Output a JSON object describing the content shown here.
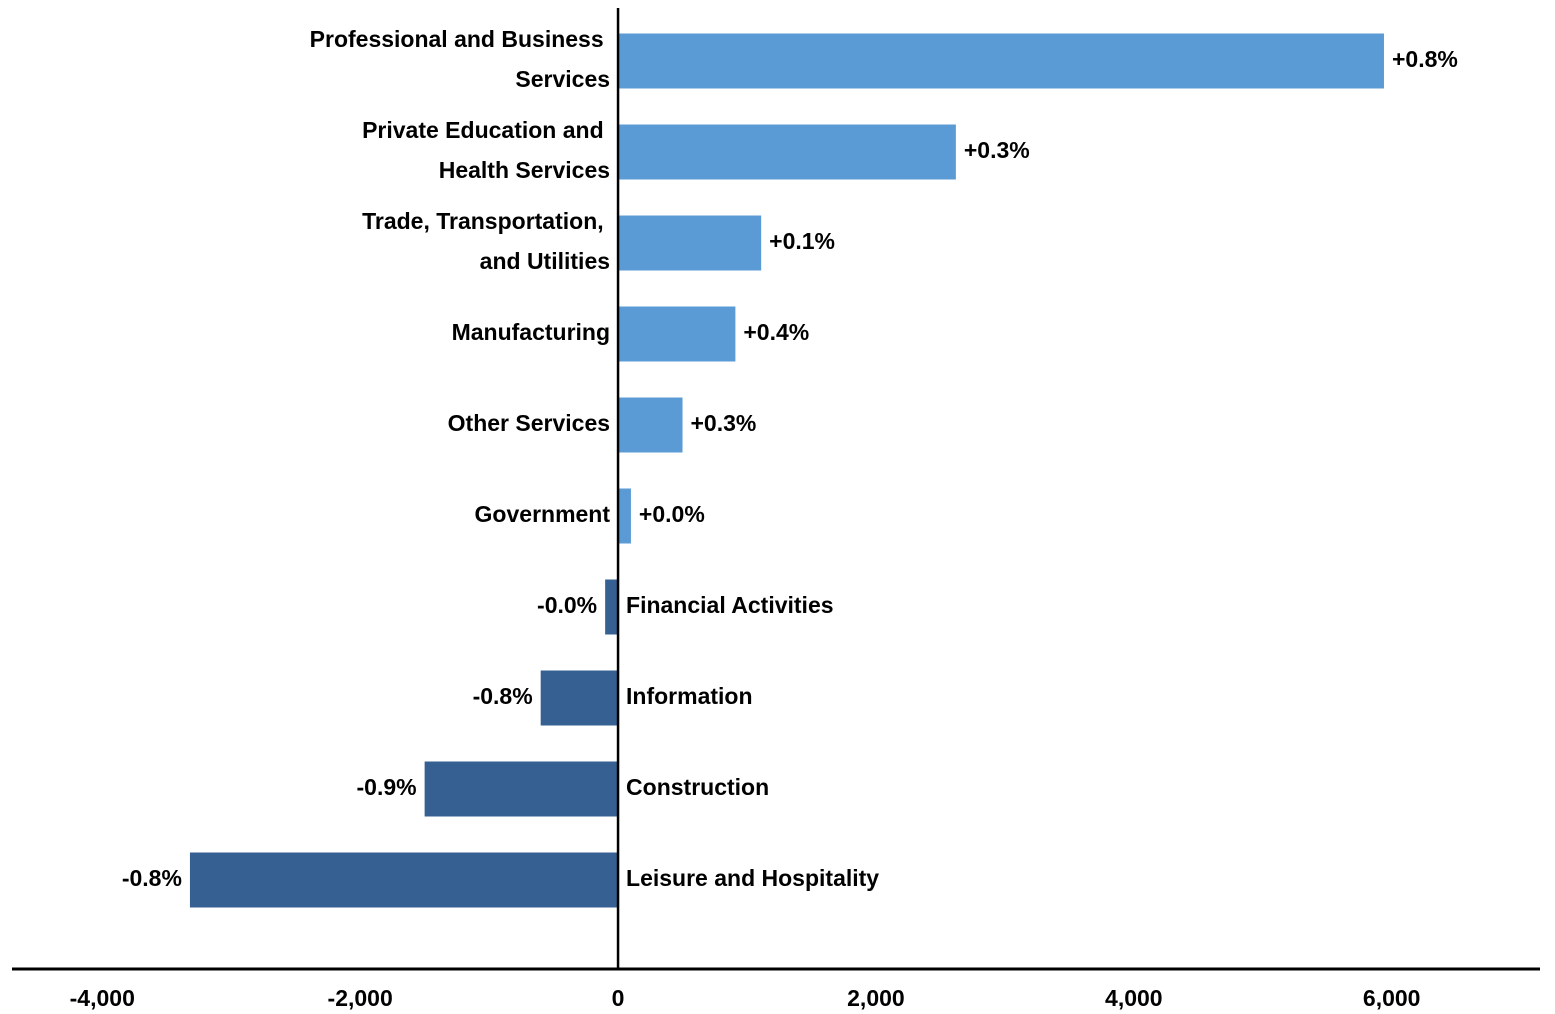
{
  "chart_data": {
    "type": "barh",
    "categories": [
      "Professional and Business Services",
      "Private Education and Health Services",
      "Trade, Transportation, and Utilities",
      "Manufacturing",
      "Other Services",
      "Government",
      "Financial Activities",
      "Information",
      "Construction",
      "Leisure and Hospitality"
    ],
    "values": [
      5940,
      2620,
      1110,
      910,
      500,
      100,
      -100,
      -600,
      -1500,
      -3320
    ],
    "annotations": [
      "+0.8%",
      "+0.3%",
      "+0.1%",
      "+0.4%",
      "+0.3%",
      "+0.0%",
      "-0.0%",
      "-0.8%",
      "-0.9%",
      "-0.8%"
    ],
    "colors": [
      "#5b9bd5",
      "#5b9bd5",
      "#5b9bd5",
      "#5b9bd5",
      "#5b9bd5",
      "#5b9bd5",
      "#366092",
      "#366092",
      "#366092",
      "#366092"
    ],
    "xlim": [
      -4700,
      7150
    ],
    "xticks": [
      {
        "value": -4000,
        "label": "-4,000"
      },
      {
        "value": -2000,
        "label": "-2,000"
      },
      0,
      {
        "value": 2000,
        "label": "2,000"
      },
      {
        "value": 4000,
        "label": "4,000"
      },
      {
        "value": 6000,
        "label": "6,000"
      }
    ],
    "grid": false
  }
}
